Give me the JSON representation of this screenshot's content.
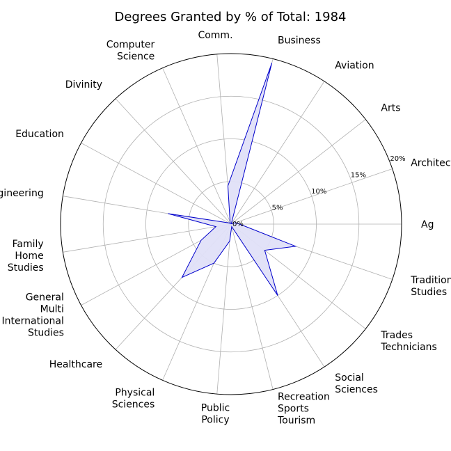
{
  "chart_data": {
    "type": "radar",
    "title": "Degrees Granted by % of Total: 1984",
    "categories": [
      "Ag",
      "Architecture",
      "Arts",
      "Aviation",
      "Business",
      "Comm.",
      "Computer\nScience",
      "Divinity",
      "Education",
      "Engineering",
      "Family\nHome\nStudies",
      "General\nMulti\nInternational\nStudies",
      "Healthcare",
      "Physical\nSciences",
      "Public\nPolicy",
      "Recreation\nSports\nTourism",
      "Social\nSciences",
      "Trades\nTechnicians",
      "Traditional\nStudies"
    ],
    "values": [
      1.0,
      0.5,
      0.1,
      0.05,
      19.5,
      4.5,
      0.3,
      0.1,
      0.3,
      7.5,
      1.8,
      4.0,
      8.5,
      5.0,
      2.0,
      0.3,
      10.0,
      5.0,
      8.0
    ],
    "rticks": [
      0,
      5,
      10,
      15,
      20
    ],
    "rtick_labels": [
      "0%",
      "5%",
      "10%",
      "15%",
      "20%"
    ],
    "rlim": [
      0,
      20
    ],
    "grid": true,
    "colors": {
      "line": "#0000cc",
      "fill": "#e0e0f8",
      "grid": "#b0b0b0",
      "frame": "#000000"
    }
  }
}
